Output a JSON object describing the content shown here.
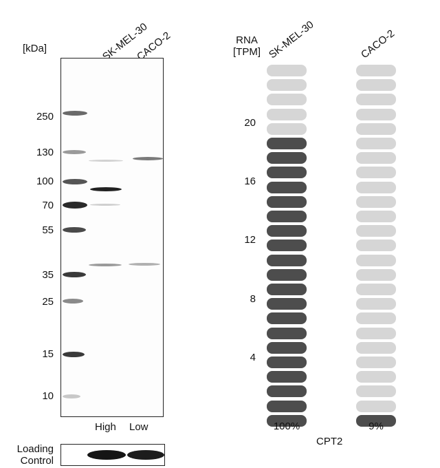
{
  "western_blot": {
    "unit_label": "[kDa]",
    "lanes": [
      "SK-MEL-30",
      "CACO-2"
    ],
    "markers": [
      "250",
      "130",
      "100",
      "70",
      "55",
      "35",
      "25",
      "15",
      "10"
    ],
    "lane_levels": [
      "High",
      "Low"
    ],
    "loading_control_line1": "Loading",
    "loading_control_line2": "Control"
  },
  "rna": {
    "axis_label_line1": "RNA",
    "axis_label_line2": "[TPM]",
    "ticks": [
      "20",
      "16",
      "12",
      "8",
      "4"
    ],
    "gene": "CPT2",
    "colors": {
      "filled": "#4d4d4d",
      "empty": "#d6d6d6"
    }
  },
  "chart_data": {
    "type": "bar",
    "categories": [
      "SK-MEL-30",
      "CACO-2"
    ],
    "values_percent": [
      100,
      9
    ],
    "value_labels": [
      "100%",
      "9%"
    ],
    "segments_total": 25,
    "segments_filled": [
      20,
      1
    ],
    "ylabel": "RNA [TPM]",
    "yticks": [
      4,
      8,
      12,
      16,
      20
    ]
  }
}
